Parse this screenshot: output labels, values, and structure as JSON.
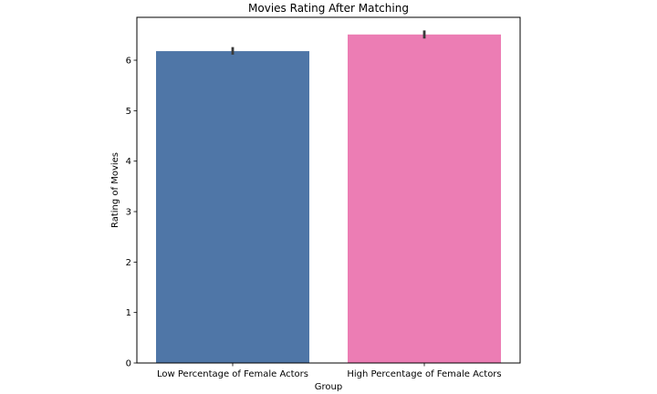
{
  "chart_data": {
    "type": "bar",
    "title": "Movies Rating After Matching",
    "xlabel": "Group",
    "ylabel": "Rating of Movies",
    "categories": [
      "Low Percentage of Female Actors",
      "High Percentage of Female Actors"
    ],
    "values": [
      6.18,
      6.51
    ],
    "error_bars": [
      {
        "low": 6.11,
        "high": 6.26
      },
      {
        "low": 6.43,
        "high": 6.59
      }
    ],
    "ylim": [
      0,
      6.85
    ],
    "yticks": [
      "0",
      "1",
      "2",
      "3",
      "4",
      "5",
      "6"
    ],
    "grid": false,
    "legend": "none",
    "colors": {
      "bars": [
        "#4f76a7",
        "#ec7db4"
      ],
      "error_bar": "#3a3a3a",
      "axes": "#000000"
    }
  }
}
